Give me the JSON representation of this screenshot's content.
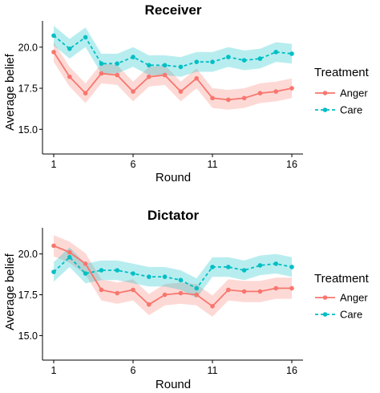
{
  "chart_data": [
    {
      "type": "line",
      "title": "Receiver",
      "xlabel": "Round",
      "ylabel": "Average belief",
      "xlim": [
        1,
        16
      ],
      "ylim": [
        13.5,
        21.6
      ],
      "x": [
        1,
        2,
        3,
        4,
        5,
        6,
        7,
        8,
        9,
        10,
        11,
        12,
        13,
        14,
        15,
        16
      ],
      "x_ticks": [
        1,
        6,
        11,
        16
      ],
      "x_tick_labels": [
        "1",
        "6",
        "11",
        "16"
      ],
      "y_ticks": [
        15.0,
        17.5,
        20.0
      ],
      "y_tick_labels": [
        "15.0",
        "17.5",
        "20.0"
      ],
      "legend_title": "Treatment",
      "legend_position": "right",
      "grid": false,
      "series": [
        {
          "name": "Anger",
          "color": "#F8766D",
          "linestyle": "solid",
          "values": [
            19.7,
            18.2,
            17.2,
            18.4,
            18.3,
            17.3,
            18.2,
            18.3,
            17.3,
            18.1,
            16.9,
            16.8,
            16.9,
            17.2,
            17.3,
            17.5
          ],
          "ci_halfwidth": [
            0.6,
            0.6,
            0.6,
            0.6,
            0.6,
            0.6,
            0.6,
            0.6,
            0.6,
            0.6,
            0.6,
            0.6,
            0.6,
            0.6,
            0.6,
            0.6
          ]
        },
        {
          "name": "Care",
          "color": "#00BFC4",
          "linestyle": "dashed",
          "values": [
            20.7,
            19.9,
            20.6,
            19.0,
            19.0,
            19.4,
            18.9,
            18.9,
            18.8,
            19.1,
            19.1,
            19.4,
            19.2,
            19.3,
            19.7,
            19.6
          ],
          "ci_halfwidth": [
            0.6,
            0.6,
            0.6,
            0.6,
            0.6,
            0.6,
            0.6,
            0.6,
            0.6,
            0.6,
            0.6,
            0.6,
            0.6,
            0.6,
            0.6,
            0.6
          ]
        }
      ]
    },
    {
      "type": "line",
      "title": "Dictator",
      "xlabel": "Round",
      "ylabel": "Average belief",
      "xlim": [
        1,
        16
      ],
      "ylim": [
        13.5,
        21.6
      ],
      "x": [
        1,
        2,
        3,
        4,
        5,
        6,
        7,
        8,
        9,
        10,
        11,
        12,
        13,
        14,
        15,
        16
      ],
      "x_ticks": [
        1,
        6,
        11,
        16
      ],
      "x_tick_labels": [
        "1",
        "6",
        "11",
        "16"
      ],
      "y_ticks": [
        15.0,
        17.5,
        20.0
      ],
      "y_tick_labels": [
        "15.0",
        "17.5",
        "20.0"
      ],
      "legend_title": "Treatment",
      "legend_position": "right",
      "grid": false,
      "series": [
        {
          "name": "Anger",
          "color": "#F8766D",
          "linestyle": "solid",
          "values": [
            20.5,
            20.1,
            19.4,
            17.8,
            17.6,
            17.8,
            16.9,
            17.5,
            17.6,
            17.5,
            16.8,
            17.8,
            17.7,
            17.7,
            17.9,
            17.9
          ],
          "ci_halfwidth": [
            0.65,
            0.65,
            0.65,
            0.65,
            0.65,
            0.65,
            0.65,
            0.65,
            0.65,
            0.65,
            0.65,
            0.65,
            0.65,
            0.65,
            0.65,
            0.65
          ]
        },
        {
          "name": "Care",
          "color": "#00BFC4",
          "linestyle": "dashed",
          "values": [
            18.9,
            19.8,
            18.8,
            19.0,
            19.0,
            18.8,
            18.6,
            18.6,
            18.4,
            17.9,
            19.2,
            19.2,
            19.0,
            19.3,
            19.4,
            19.2
          ],
          "ci_halfwidth": [
            0.6,
            0.6,
            0.6,
            0.6,
            0.6,
            0.6,
            0.6,
            0.6,
            0.6,
            0.6,
            0.6,
            0.6,
            0.6,
            0.6,
            0.6,
            0.6
          ]
        }
      ]
    }
  ]
}
